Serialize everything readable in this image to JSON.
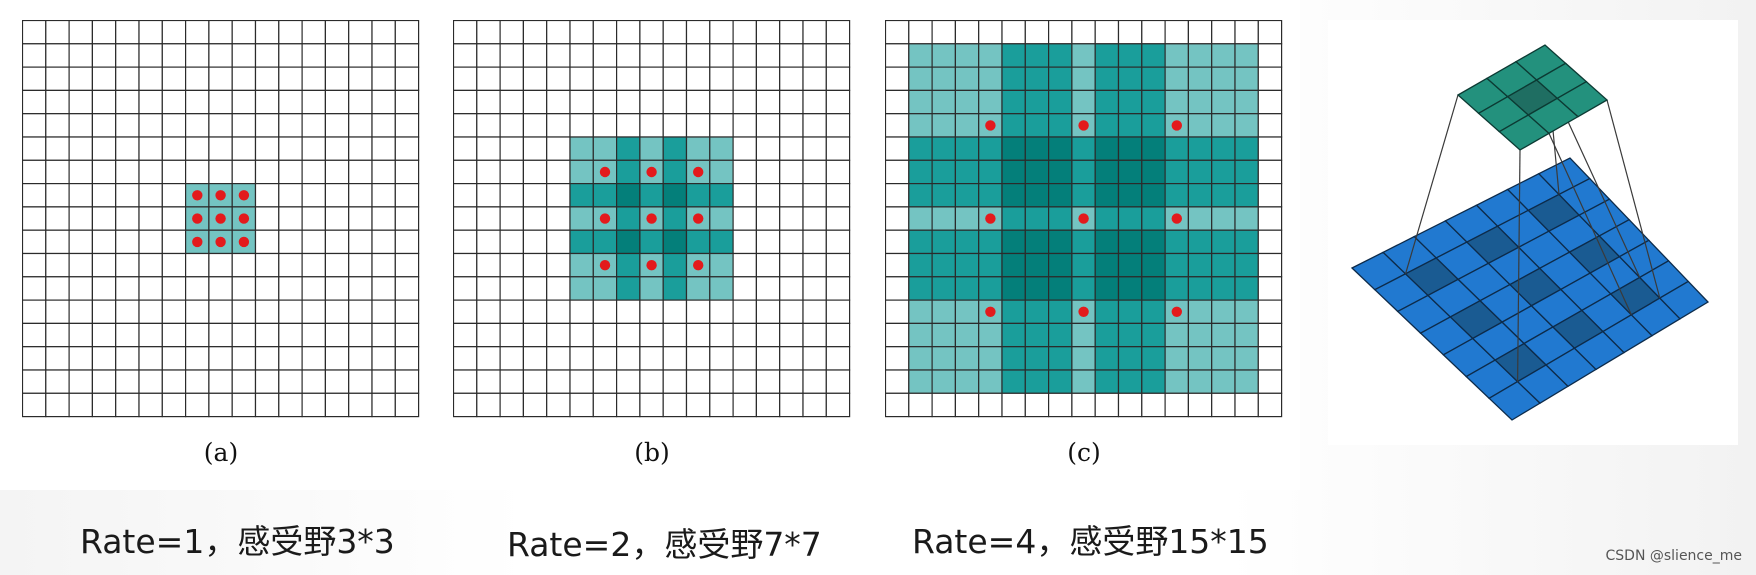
{
  "colors": {
    "grid_line": "#2b2b2b",
    "light_teal": "#74c4c2",
    "mid_teal": "#1a9e9b",
    "dark_teal": "#047f7a",
    "dot_red": "#e31a1c",
    "top_kernel": "#23917d",
    "top_kernel_center": "#1f6e62",
    "base_blue": "#2179d0",
    "base_blue_dark": "#1a5b92"
  },
  "panels": [
    {
      "label": "(a)",
      "rate": 1,
      "caption": "Rate=1，感受野3*3"
    },
    {
      "label": "(b)",
      "rate": 2,
      "caption": "Rate=2，感受野7*7"
    },
    {
      "label": "(c)",
      "rate": 4,
      "caption": "Rate=4，感受野15*15"
    }
  ],
  "watermark": "CSDN @slience_me"
}
